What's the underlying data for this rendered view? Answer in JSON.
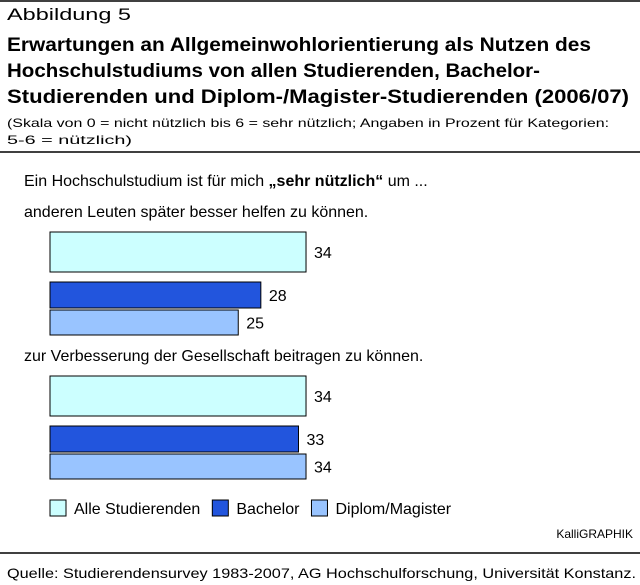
{
  "chart_data": {
    "type": "bar",
    "label": "Abbildung 5",
    "title": [
      "Erwartungen an Allgemeinwohlorientierung als Nutzen des",
      "Hochschulstudiums von allen Studierenden, Bachelor-",
      "Studierenden und Diplom-/Magister-Studierenden (2006/07)"
    ],
    "subtitle": [
      "(Skala von 0 = nicht nützlich bis 6 = sehr nützlich; Angaben in Prozent für Kategorien:",
      "5-6 = nützlich)"
    ],
    "intro": [
      "Ein Hochschulstudium ist für mich",
      "„sehr nützlich“",
      "um ..."
    ],
    "categories": [
      "anderen Leuten später besser helfen zu können.",
      "zur Verbesserung der Gesellschaft beitragen zu können."
    ],
    "series": [
      {
        "name": "Alle Studierenden",
        "color": "#ccffff",
        "values": [
          34,
          34
        ]
      },
      {
        "name": "Bachelor",
        "color": "#2255dd",
        "values": [
          28,
          33
        ]
      },
      {
        "name": "Diplom/Magister",
        "color": "#99c4ff",
        "values": [
          25,
          34
        ]
      }
    ],
    "credit": "KalliGRAPHIK",
    "source": "Quelle: Studierendensurvey 1983-2007, AG Hochschulforschung, Universität Konstanz."
  }
}
